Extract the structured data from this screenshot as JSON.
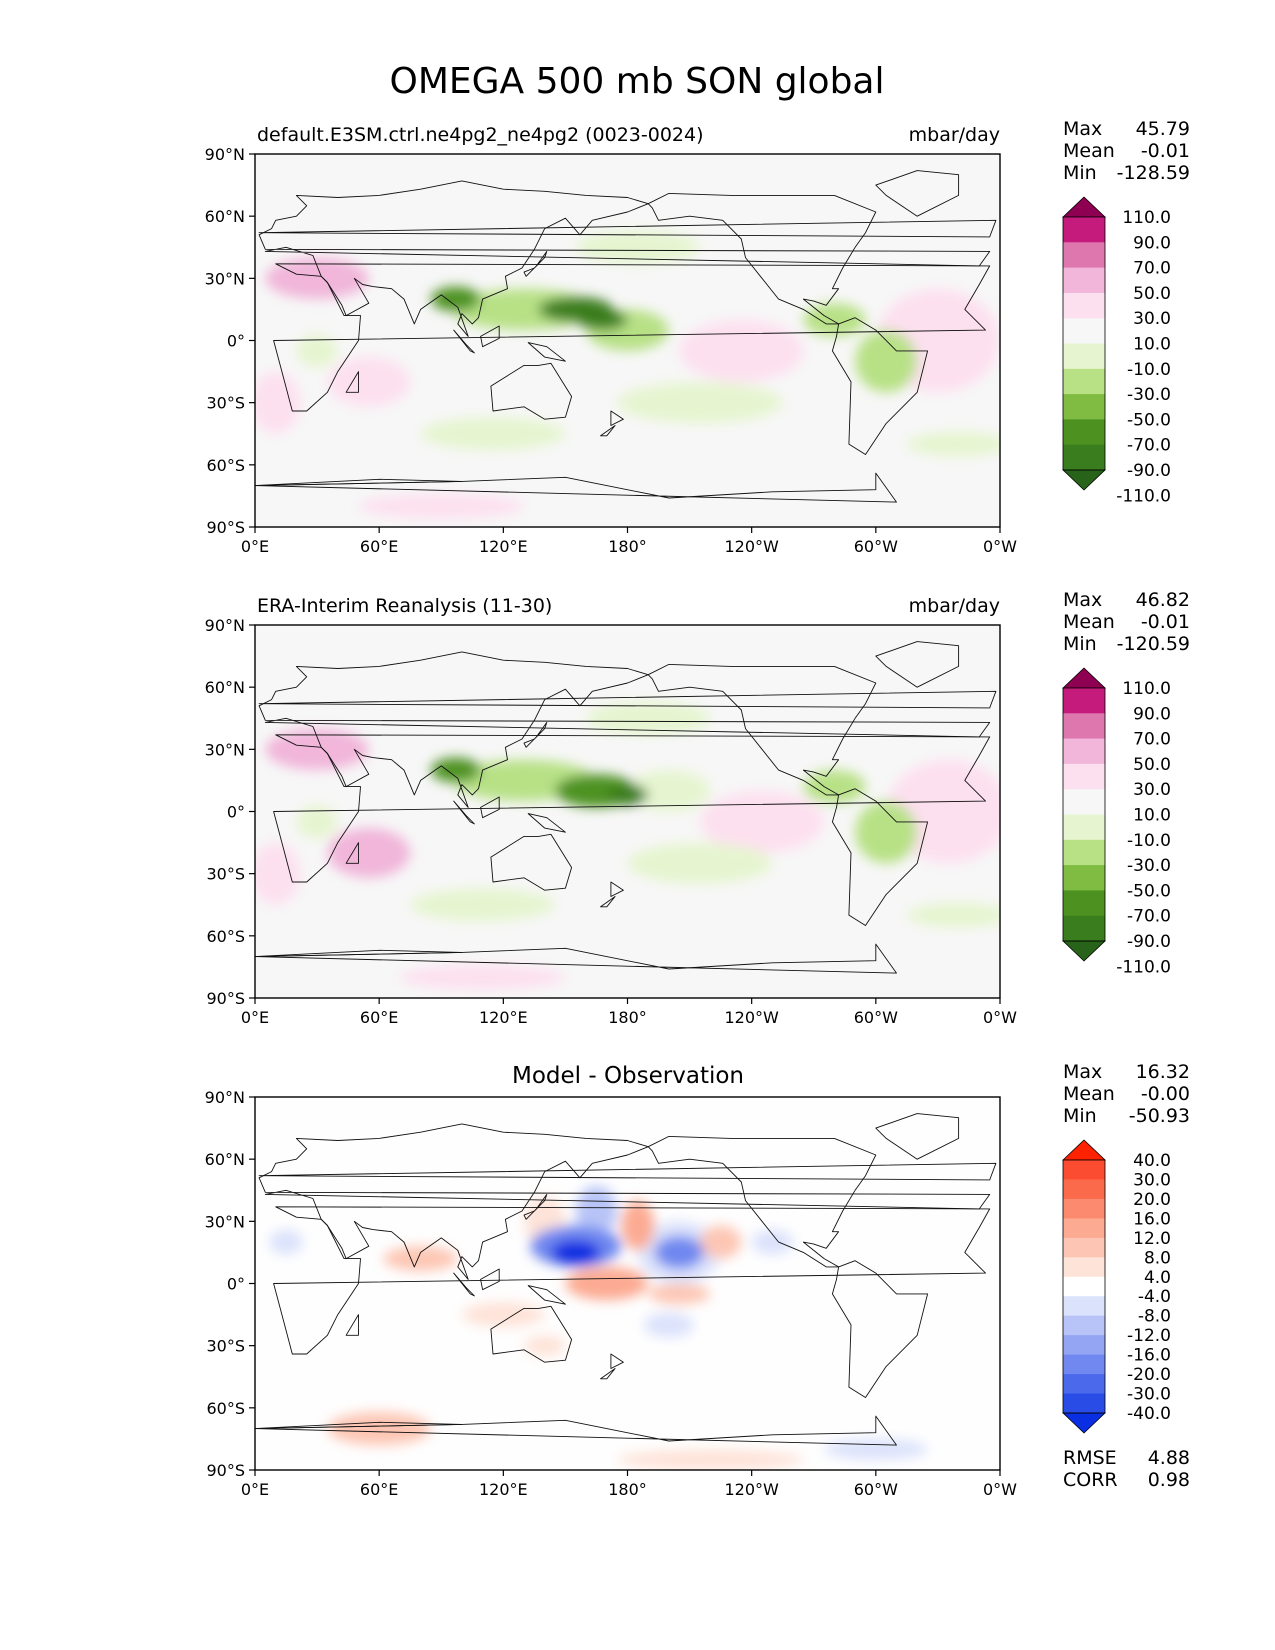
{
  "figure_title": "OMEGA 500 mb SON global",
  "chart_data": [
    {
      "type": "heatmap",
      "panel": "model",
      "title": "default.E3SM.ctrl.ne4pg2_ne4pg2 (0023-0024)",
      "units": "mbar/day",
      "x_ticks": [
        "0°E",
        "60°E",
        "120°E",
        "180°",
        "120°W",
        "60°W",
        "0°W"
      ],
      "y_ticks": [
        "90°N",
        "60°N",
        "30°N",
        "0°",
        "30°S",
        "60°S",
        "90°S"
      ],
      "xlim": [
        0,
        360
      ],
      "ylim": [
        -90,
        90
      ],
      "stats": {
        "max": "45.79",
        "mean": "-0.01",
        "min": "-128.59"
      },
      "colorbar": {
        "extend": "both",
        "levels": [
          "110.0",
          "90.0",
          "70.0",
          "50.0",
          "30.0",
          "10.0",
          "-10.0",
          "-30.0",
          "-50.0",
          "-70.0",
          "-90.0",
          "-110.0"
        ],
        "colors": [
          "#8e0152",
          "#c51b7d",
          "#de77ae",
          "#f1b6da",
          "#fde0ef",
          "#f7f7f7",
          "#e6f5d0",
          "#b8e186",
          "#7fbc41",
          "#4d9221",
          "#3a7d1e",
          "#276419"
        ]
      },
      "fields": [
        {
          "lon": 155,
          "lat": 15,
          "value": -110,
          "rx": 18,
          "ry": 6
        },
        {
          "lon": 168,
          "lat": 10,
          "value": -95,
          "rx": 12,
          "ry": 5
        },
        {
          "lon": 97,
          "lat": 20,
          "value": -80,
          "rx": 12,
          "ry": 6
        },
        {
          "lon": 130,
          "lat": 15,
          "value": -50,
          "rx": 35,
          "ry": 10
        },
        {
          "lon": 180,
          "lat": 5,
          "value": -45,
          "rx": 20,
          "ry": 10
        },
        {
          "lon": 215,
          "lat": -30,
          "value": -25,
          "rx": 40,
          "ry": 10
        },
        {
          "lon": 185,
          "lat": 45,
          "value": -25,
          "rx": 30,
          "ry": 8
        },
        {
          "lon": 305,
          "lat": -10,
          "value": -45,
          "rx": 15,
          "ry": 15
        },
        {
          "lon": 280,
          "lat": 10,
          "value": -35,
          "rx": 15,
          "ry": 8
        },
        {
          "lon": 30,
          "lat": -5,
          "value": -30,
          "rx": 10,
          "ry": 8
        },
        {
          "lon": 115,
          "lat": -45,
          "value": -25,
          "rx": 35,
          "ry": 8
        },
        {
          "lon": 340,
          "lat": -50,
          "value": -25,
          "rx": 25,
          "ry": 6
        },
        {
          "lon": 30,
          "lat": 30,
          "value": 40,
          "rx": 25,
          "ry": 10
        },
        {
          "lon": 55,
          "lat": -20,
          "value": 25,
          "rx": 20,
          "ry": 12
        },
        {
          "lon": 235,
          "lat": -5,
          "value": 20,
          "rx": 30,
          "ry": 15
        },
        {
          "lon": 330,
          "lat": 0,
          "value": 25,
          "rx": 30,
          "ry": 25
        },
        {
          "lon": 90,
          "lat": -80,
          "value": 15,
          "rx": 40,
          "ry": 6
        },
        {
          "lon": 10,
          "lat": -30,
          "value": 15,
          "rx": 12,
          "ry": 15
        }
      ]
    },
    {
      "type": "heatmap",
      "panel": "observation",
      "title": "ERA-Interim Reanalysis (11-30)",
      "units": "mbar/day",
      "x_ticks": [
        "0°E",
        "60°E",
        "120°E",
        "180°",
        "120°W",
        "60°W",
        "0°W"
      ],
      "y_ticks": [
        "90°N",
        "60°N",
        "30°N",
        "0°",
        "30°S",
        "60°S",
        "90°S"
      ],
      "xlim": [
        0,
        360
      ],
      "ylim": [
        -90,
        90
      ],
      "stats": {
        "max": "46.82",
        "mean": "-0.01",
        "min": "-120.59"
      },
      "colorbar": {
        "extend": "both",
        "levels": [
          "110.0",
          "90.0",
          "70.0",
          "50.0",
          "30.0",
          "10.0",
          "-10.0",
          "-30.0",
          "-50.0",
          "-70.0",
          "-90.0",
          "-110.0"
        ],
        "colors": [
          "#8e0152",
          "#c51b7d",
          "#de77ae",
          "#f1b6da",
          "#fde0ef",
          "#f7f7f7",
          "#e6f5d0",
          "#b8e186",
          "#7fbc41",
          "#4d9221",
          "#3a7d1e",
          "#276419"
        ]
      },
      "fields": [
        {
          "lon": 180,
          "lat": 8,
          "value": -110,
          "rx": 10,
          "ry": 5
        },
        {
          "lon": 165,
          "lat": 10,
          "value": -85,
          "rx": 20,
          "ry": 8
        },
        {
          "lon": 97,
          "lat": 20,
          "value": -75,
          "rx": 12,
          "ry": 6
        },
        {
          "lon": 130,
          "lat": 15,
          "value": -50,
          "rx": 35,
          "ry": 10
        },
        {
          "lon": 200,
          "lat": 10,
          "value": -30,
          "rx": 20,
          "ry": 10
        },
        {
          "lon": 215,
          "lat": -25,
          "value": -25,
          "rx": 35,
          "ry": 10
        },
        {
          "lon": 190,
          "lat": 45,
          "value": -25,
          "rx": 30,
          "ry": 8
        },
        {
          "lon": 305,
          "lat": -10,
          "value": -45,
          "rx": 15,
          "ry": 15
        },
        {
          "lon": 280,
          "lat": 12,
          "value": -35,
          "rx": 15,
          "ry": 8
        },
        {
          "lon": 30,
          "lat": -5,
          "value": -30,
          "rx": 10,
          "ry": 8
        },
        {
          "lon": 110,
          "lat": -45,
          "value": -25,
          "rx": 35,
          "ry": 8
        },
        {
          "lon": 340,
          "lat": -50,
          "value": -25,
          "rx": 25,
          "ry": 6
        },
        {
          "lon": 30,
          "lat": 30,
          "value": 40,
          "rx": 25,
          "ry": 10
        },
        {
          "lon": 55,
          "lat": -20,
          "value": 30,
          "rx": 20,
          "ry": 12
        },
        {
          "lon": 245,
          "lat": -5,
          "value": 20,
          "rx": 30,
          "ry": 15
        },
        {
          "lon": 335,
          "lat": 0,
          "value": 25,
          "rx": 30,
          "ry": 25
        },
        {
          "lon": 110,
          "lat": -80,
          "value": 15,
          "rx": 40,
          "ry": 6
        },
        {
          "lon": 10,
          "lat": -30,
          "value": 15,
          "rx": 12,
          "ry": 15
        }
      ]
    },
    {
      "type": "heatmap",
      "panel": "difference",
      "title": "Model - Observation",
      "units": "",
      "x_ticks": [
        "0°E",
        "60°E",
        "120°E",
        "180°",
        "120°W",
        "60°W",
        "0°W"
      ],
      "y_ticks": [
        "90°N",
        "60°N",
        "30°N",
        "0°",
        "30°S",
        "60°S",
        "90°S"
      ],
      "xlim": [
        0,
        360
      ],
      "ylim": [
        -90,
        90
      ],
      "stats": {
        "max": "16.32",
        "mean": "-0.00",
        "min": "-50.93"
      },
      "extra_stats": {
        "rmse": "4.88",
        "corr": "0.98"
      },
      "colorbar": {
        "extend": "both",
        "levels": [
          "40.0",
          "30.0",
          "20.0",
          "16.0",
          "12.0",
          "8.0",
          "4.0",
          "-4.0",
          "-8.0",
          "-12.0",
          "-16.0",
          "-20.0",
          "-30.0",
          "-40.0"
        ],
        "colors": [
          "#ff2200",
          "#fb4b30",
          "#fc6a4c",
          "#fc8a6e",
          "#fcaa92",
          "#fdc6b4",
          "#fee3d8",
          "#ffffff",
          "#dbe2fb",
          "#b8c4f7",
          "#94a6f3",
          "#7088ef",
          "#4b6aeb",
          "#2a4ce6",
          "#0a2fe2"
        ]
      },
      "fields": [
        {
          "lon": 155,
          "lat": 15,
          "value": -45,
          "rx": 12,
          "ry": 6
        },
        {
          "lon": 155,
          "lat": 18,
          "value": -20,
          "rx": 22,
          "ry": 10
        },
        {
          "lon": 165,
          "lat": 35,
          "value": -12,
          "rx": 10,
          "ry": 12
        },
        {
          "lon": 205,
          "lat": 15,
          "value": -20,
          "rx": 12,
          "ry": 8
        },
        {
          "lon": 205,
          "lat": 15,
          "value": -8,
          "rx": 20,
          "ry": 15
        },
        {
          "lon": 200,
          "lat": -20,
          "value": -8,
          "rx": 12,
          "ry": 6
        },
        {
          "lon": 250,
          "lat": 20,
          "value": -6,
          "rx": 10,
          "ry": 6
        },
        {
          "lon": 15,
          "lat": 20,
          "value": -6,
          "rx": 8,
          "ry": 6
        },
        {
          "lon": 300,
          "lat": -80,
          "value": -8,
          "rx": 25,
          "ry": 5
        },
        {
          "lon": 170,
          "lat": 0,
          "value": 14,
          "rx": 20,
          "ry": 8
        },
        {
          "lon": 185,
          "lat": 28,
          "value": 14,
          "rx": 8,
          "ry": 12
        },
        {
          "lon": 80,
          "lat": 12,
          "value": 10,
          "rx": 18,
          "ry": 6
        },
        {
          "lon": 225,
          "lat": 20,
          "value": 8,
          "rx": 10,
          "ry": 8
        },
        {
          "lon": 205,
          "lat": -5,
          "value": 8,
          "rx": 15,
          "ry": 5
        },
        {
          "lon": 120,
          "lat": -15,
          "value": 6,
          "rx": 20,
          "ry": 6
        },
        {
          "lon": 140,
          "lat": -30,
          "value": 6,
          "rx": 10,
          "ry": 5
        },
        {
          "lon": 60,
          "lat": -70,
          "value": 8,
          "rx": 25,
          "ry": 8
        },
        {
          "lon": 220,
          "lat": -85,
          "value": 6,
          "rx": 45,
          "ry": 5
        },
        {
          "lon": 140,
          "lat": 30,
          "value": 6,
          "rx": 10,
          "ry": 12
        }
      ]
    }
  ]
}
